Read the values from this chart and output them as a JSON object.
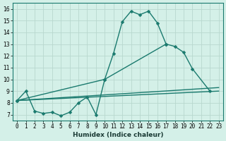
{
  "xlabel": "Humidex (Indice chaleur)",
  "x": [
    0,
    1,
    2,
    3,
    4,
    5,
    6,
    7,
    8,
    9,
    10,
    11,
    12,
    13,
    14,
    15,
    16,
    17,
    18,
    19,
    20,
    21,
    22,
    23
  ],
  "line1_y": [
    8.2,
    9.0,
    7.3,
    7.1,
    7.2,
    6.9,
    7.2,
    8.0,
    8.5,
    7.0,
    10.0,
    12.2,
    14.9,
    15.8,
    15.5,
    15.8,
    14.8,
    13.0,
    null,
    null,
    null,
    null,
    null,
    null
  ],
  "line2_y": [
    8.2,
    null,
    null,
    null,
    null,
    null,
    null,
    null,
    null,
    null,
    10.0,
    null,
    null,
    null,
    null,
    null,
    null,
    13.0,
    12.8,
    12.3,
    10.9,
    null,
    9.0,
    null
  ],
  "line3_x": [
    0,
    23
  ],
  "line3_y": [
    8.2,
    9.3
  ],
  "line4_x": [
    0,
    23
  ],
  "line4_y": [
    8.2,
    9.0
  ],
  "ylim": [
    6.5,
    16.5
  ],
  "xlim": [
    -0.5,
    23.5
  ],
  "yticks": [
    7,
    8,
    9,
    10,
    11,
    12,
    13,
    14,
    15,
    16
  ],
  "xtick_labels": [
    "0",
    "1",
    "2",
    "3",
    "4",
    "5",
    "6",
    "7",
    "8",
    "9",
    "10",
    "11",
    "12",
    "13",
    "14",
    "15",
    "16",
    "17",
    "18",
    "19",
    "20",
    "21",
    "22",
    "23"
  ],
  "line_color": "#1a7a6e",
  "bg_color": "#d4f0e8",
  "grid_color": "#b8d8ce",
  "markersize": 2.5,
  "linewidth": 1.0,
  "tick_fontsize": 5.5,
  "xlabel_fontsize": 6.5
}
